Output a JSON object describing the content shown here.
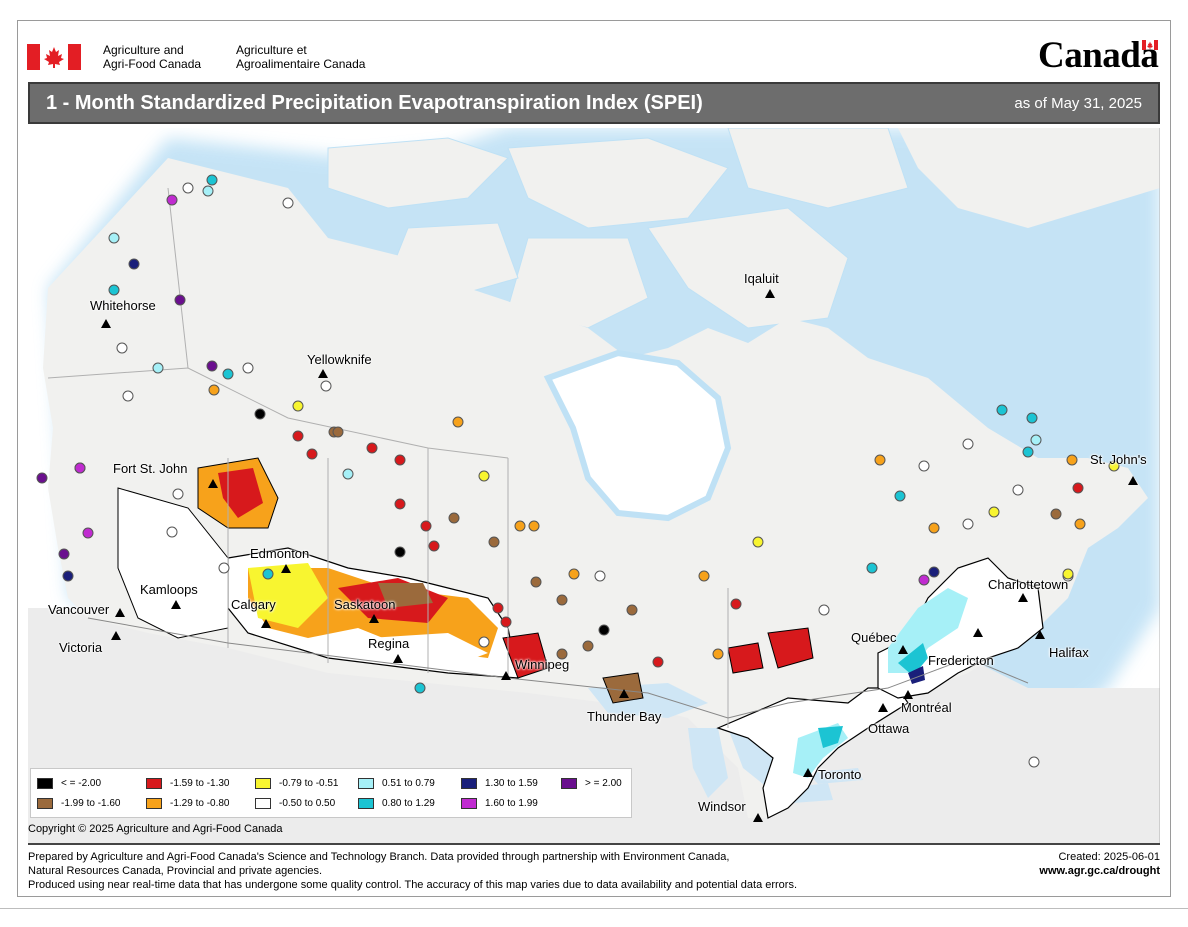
{
  "header": {
    "department_en": [
      "Agriculture and",
      "Agri-Food Canada"
    ],
    "department_fr": [
      "Agriculture et",
      "Agroalimentaire Canada"
    ],
    "wordmark": "Canada"
  },
  "title_bar": {
    "title": "1 - Month Standardized Precipitation Evapotranspiration Index (SPEI)",
    "date": "as of May 31, 2025"
  },
  "map": {
    "cities": [
      {
        "name": "Whitehorse",
        "symbol": "triangle"
      },
      {
        "name": "Yellowknife",
        "symbol": "triangle"
      },
      {
        "name": "Iqaluit",
        "symbol": "triangle"
      },
      {
        "name": "Fort St. John",
        "symbol": "triangle"
      },
      {
        "name": "Edmonton",
        "symbol": "triangle"
      },
      {
        "name": "Kamloops",
        "symbol": "triangle"
      },
      {
        "name": "Calgary",
        "symbol": "triangle"
      },
      {
        "name": "Vancouver",
        "symbol": "triangle"
      },
      {
        "name": "Victoria",
        "symbol": "triangle"
      },
      {
        "name": "Saskatoon",
        "symbol": "triangle"
      },
      {
        "name": "Regina",
        "symbol": "triangle"
      },
      {
        "name": "Winnipeg",
        "symbol": "triangle"
      },
      {
        "name": "Thunder Bay",
        "symbol": "triangle"
      },
      {
        "name": "Québec",
        "symbol": "triangle"
      },
      {
        "name": "Montréal",
        "symbol": "triangle"
      },
      {
        "name": "Ottawa",
        "symbol": "triangle"
      },
      {
        "name": "Toronto",
        "symbol": "triangle"
      },
      {
        "name": "Windsor",
        "symbol": "triangle"
      },
      {
        "name": "Fredericton",
        "symbol": "triangle"
      },
      {
        "name": "Charlottetown",
        "symbol": "triangle"
      },
      {
        "name": "Halifax",
        "symbol": "triangle"
      },
      {
        "name": "St. John's",
        "symbol": "triangle"
      }
    ],
    "colors": {
      "ocean": "#ffffff",
      "land": "#f1f1ef",
      "water": "#cfe6f5",
      "us_land": "#ececec",
      "border": "#b0b0b0",
      "region_outline": "#000000"
    }
  },
  "legend": {
    "items": [
      {
        "label": "< = -2.00",
        "color": "#000000"
      },
      {
        "label": "-1.99 to -1.60",
        "color": "#9b6a3c"
      },
      {
        "label": "-1.59 to -1.30",
        "color": "#d7191c"
      },
      {
        "label": "-1.29 to -0.80",
        "color": "#f7a21b"
      },
      {
        "label": "-0.79 to -0.51",
        "color": "#f8f530"
      },
      {
        "label": "-0.50 to 0.50",
        "color": "#ffffff"
      },
      {
        "label": "0.51 to 0.79",
        "color": "#a6f0f7"
      },
      {
        "label": "0.80 to 1.29",
        "color": "#1cc4d3"
      },
      {
        "label": "1.30 to 1.59",
        "color": "#1a1f7a"
      },
      {
        "label": "1.60 to 1.99",
        "color": "#c02bd0"
      },
      {
        "label": "> = 2.00",
        "color": "#6a0f8e"
      }
    ]
  },
  "copyright": "Copyright © 2025 Agriculture and Agri-Food Canada",
  "footer": {
    "lines": [
      "Prepared by Agriculture and Agri-Food Canada's Science and Technology Branch. Data provided through partnership with Environment Canada,",
      "Natural Resources Canada, Provincial and private agencies.",
      "Produced using near real-time data that has undergone some quality control. The accuracy of this map varies due to data availability and potential data errors."
    ],
    "created": "Created: 2025-06-01",
    "url": "www.agr.gc.ca/drought"
  }
}
